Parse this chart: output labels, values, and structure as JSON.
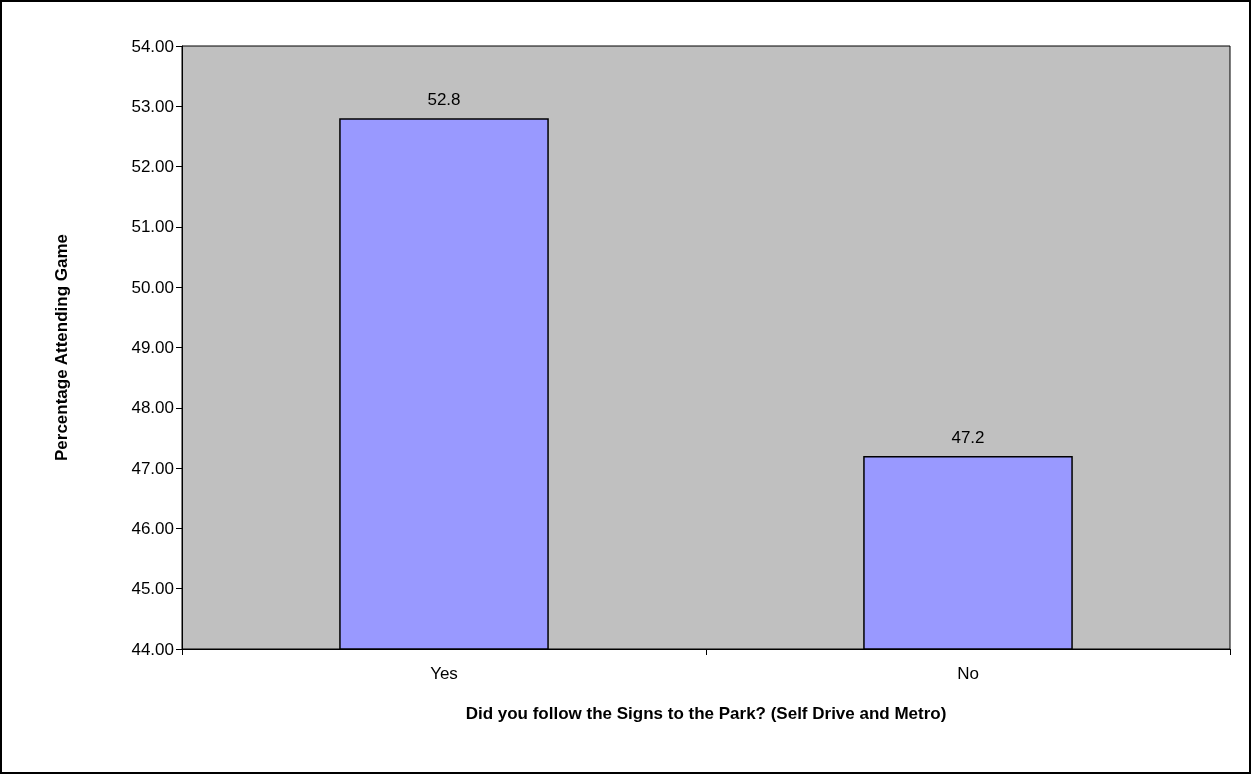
{
  "chart_data": {
    "type": "bar",
    "xlabel": "Did you follow the Signs to the Park? (Self Drive and Metro)",
    "ylabel": "Percentage Attending Game",
    "categories": [
      "Yes",
      "No"
    ],
    "values": [
      52.8,
      47.2
    ],
    "color": "#9999ff",
    "data_labels": true,
    "ylim": [
      44,
      54
    ],
    "yticks": [
      {
        "value": 44,
        "label": "44.00"
      },
      {
        "value": 45,
        "label": "45.00"
      },
      {
        "value": 46,
        "label": "46.00"
      },
      {
        "value": 47,
        "label": "47.00"
      },
      {
        "value": 48,
        "label": "48.00"
      },
      {
        "value": 49,
        "label": "49.00"
      },
      {
        "value": 50,
        "label": "50.00"
      },
      {
        "value": 51,
        "label": "51.00"
      },
      {
        "value": 52,
        "label": "52.00"
      },
      {
        "value": 53,
        "label": "53.00"
      },
      {
        "value": 54,
        "label": "54.00"
      }
    ],
    "grid": false
  }
}
